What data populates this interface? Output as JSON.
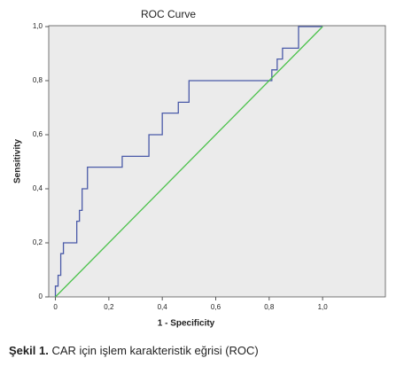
{
  "chart_data": {
    "type": "line",
    "title": "ROC Curve",
    "x_label": "1 - Specificity",
    "y_label": "Sensitivity",
    "series": [
      {
        "color": "#4a5aa8",
        "x": [
          0,
          0,
          0.01,
          0.01,
          0.02,
          0.02,
          0.03,
          0.03,
          0.08,
          0.08,
          0.09,
          0.09,
          0.1,
          0.1,
          0.12,
          0.12,
          0.25,
          0.25,
          0.35,
          0.35,
          0.4,
          0.4,
          0.46,
          0.46,
          0.5,
          0.5,
          0.81,
          0.81,
          0.83,
          0.83,
          0.85,
          0.85,
          0.86,
          0.86,
          0.91,
          0.91,
          1
        ],
        "values": [
          0,
          0.04,
          0.04,
          0.08,
          0.08,
          0.16,
          0.16,
          0.2,
          0.2,
          0.28,
          0.28,
          0.32,
          0.32,
          0.4,
          0.4,
          0.48,
          0.48,
          0.52,
          0.52,
          0.6,
          0.6,
          0.68,
          0.68,
          0.72,
          0.72,
          0.8,
          0.8,
          0.84,
          0.84,
          0.88,
          0.88,
          0.92,
          0.92,
          0.92,
          0.92,
          1,
          1
        ]
      },
      {
        "color": "#4cc24c",
        "x": [
          0,
          1
        ],
        "values": [
          0,
          1
        ]
      }
    ],
    "xlim": [
      -0.025,
      1.235
    ],
    "ylim": [
      0,
      1
    ],
    "xticks": [
      0,
      {
        "value": 0.2,
        "label": "0,2"
      },
      {
        "value": 0.4,
        "label": "0,4"
      },
      {
        "value": 0.6,
        "label": "0,6"
      },
      {
        "value": 0.8,
        "label": "0,8"
      },
      {
        "value": 1,
        "label": "1,0"
      }
    ],
    "yticks": [
      0,
      {
        "value": 0.2,
        "label": "0,2"
      },
      {
        "value": 0.4,
        "label": "0,4"
      },
      {
        "value": 0.6,
        "label": "0,6"
      },
      {
        "value": 0.8,
        "label": "0,8"
      },
      {
        "value": 1,
        "label": "1,0"
      }
    ]
  },
  "caption": {
    "label": "Şekil 1.",
    "text": "CAR için işlem karakteristik eğrisi (ROC)"
  }
}
